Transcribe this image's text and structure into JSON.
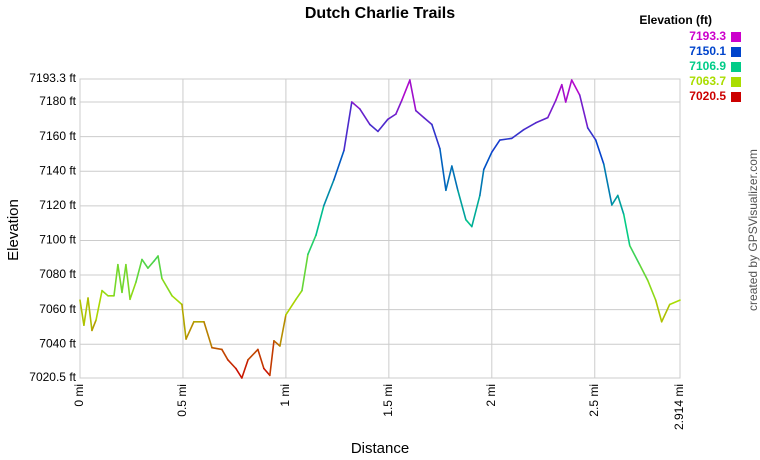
{
  "chart_data": {
    "type": "line",
    "title": "Dutch Charlie Trails",
    "x_label": "Distance",
    "y_label": "Elevation",
    "credit": "created by GPSVisualizer.com",
    "legend": {
      "title": "Elevation (ft)",
      "values": [
        7193.3,
        7150.1,
        7106.9,
        7063.7,
        7020.5
      ],
      "colors": [
        "#cc00cc",
        "#0044cc",
        "#00cc88",
        "#aadd00",
        "#cc0000"
      ]
    },
    "grid": true,
    "xlim": [
      0,
      2.914
    ],
    "ylim": [
      7020.5,
      7193.3
    ],
    "xticks": [
      {
        "value": 0,
        "label": "0 mi"
      },
      {
        "value": 0.5,
        "label": "0.5 mi"
      },
      {
        "value": 1,
        "label": "1 mi"
      },
      {
        "value": 1.5,
        "label": "1.5 mi"
      },
      {
        "value": 2,
        "label": "2 mi"
      },
      {
        "value": 2.5,
        "label": "2.5 mi"
      },
      {
        "value": 2.914,
        "label": "2.914 mi"
      }
    ],
    "yticks": [
      {
        "value": 7020.5,
        "label": "7020.5 ft"
      },
      {
        "value": 7040,
        "label": "7040 ft"
      },
      {
        "value": 7060,
        "label": "7060 ft"
      },
      {
        "value": 7080,
        "label": "7080 ft"
      },
      {
        "value": 7100,
        "label": "7100 ft"
      },
      {
        "value": 7120,
        "label": "7120 ft"
      },
      {
        "value": 7140,
        "label": "7140 ft"
      },
      {
        "value": 7160,
        "label": "7160 ft"
      },
      {
        "value": 7180,
        "label": "7180 ft"
      },
      {
        "value": 7193.3,
        "label": "7193.3 ft"
      }
    ],
    "x": [
      0,
      0.019,
      0.039,
      0.058,
      0.078,
      0.107,
      0.136,
      0.165,
      0.184,
      0.204,
      0.223,
      0.243,
      0.272,
      0.301,
      0.33,
      0.359,
      0.379,
      0.398,
      0.447,
      0.495,
      0.515,
      0.553,
      0.602,
      0.641,
      0.689,
      0.718,
      0.757,
      0.786,
      0.816,
      0.864,
      0.893,
      0.922,
      0.942,
      0.971,
      1.0,
      1.049,
      1.078,
      1.107,
      1.146,
      1.184,
      1.233,
      1.282,
      1.32,
      1.359,
      1.408,
      1.447,
      1.495,
      1.534,
      1.563,
      1.602,
      1.631,
      1.67,
      1.709,
      1.748,
      1.777,
      1.806,
      1.835,
      1.874,
      1.903,
      1.942,
      1.961,
      2.0,
      2.039,
      2.097,
      2.155,
      2.214,
      2.272,
      2.311,
      2.34,
      2.359,
      2.388,
      2.427,
      2.466,
      2.505,
      2.544,
      2.583,
      2.612,
      2.641,
      2.67,
      2.718,
      2.757,
      2.796,
      2.825,
      2.864,
      2.914
    ],
    "values": [
      7065.5,
      7051,
      7066.7,
      7048,
      7054,
      7071,
      7068,
      7068,
      7086,
      7070,
      7086,
      7066,
      7076,
      7089,
      7084,
      7088,
      7091,
      7078,
      7068,
      7063,
      7043,
      7053,
      7053,
      7038,
      7037,
      7031,
      7026,
      7020.5,
      7031,
      7037,
      7026,
      7022,
      7042,
      7039,
      7057,
      7066,
      7071,
      7092,
      7103,
      7120,
      7135,
      7152,
      7180,
      7176,
      7167,
      7163,
      7170,
      7173,
      7181,
      7192.7,
      7175,
      7171,
      7167,
      7153,
      7129,
      7143,
      7129,
      7112,
      7108,
      7126,
      7141,
      7151,
      7158,
      7159,
      7164,
      7168,
      7171,
      7181,
      7190,
      7180,
      7192.7,
      7184,
      7165,
      7158,
      7144,
      7120.5,
      7126,
      7115,
      7097,
      7086,
      7077,
      7065.5,
      7053,
      7063,
      7065.5
    ]
  }
}
